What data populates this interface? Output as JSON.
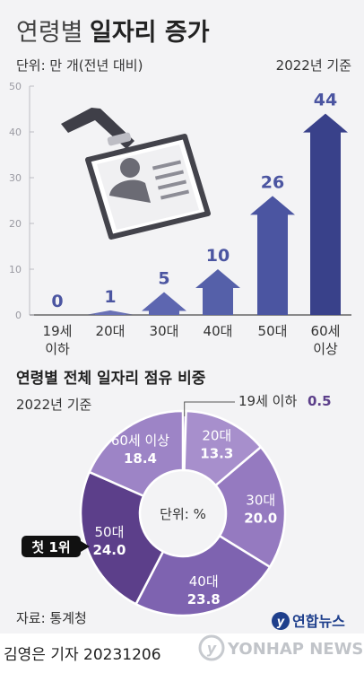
{
  "title": {
    "light": "연령별",
    "bold": "일자리 증가"
  },
  "unit_label": "단위: 만 개(전년 대비)",
  "year_label": "2022년 기준",
  "chart_data": [
    {
      "type": "bar",
      "categories": [
        "19세 이하",
        "20대",
        "30대",
        "40대",
        "50대",
        "60세 이상"
      ],
      "category_lines": [
        [
          "19세",
          "이하"
        ],
        [
          "20대"
        ],
        [
          "30대"
        ],
        [
          "40대"
        ],
        [
          "50대"
        ],
        [
          "60세",
          "이상"
        ]
      ],
      "values": [
        0,
        1,
        5,
        10,
        26,
        44
      ],
      "ylim": [
        0,
        50
      ],
      "yticks": [
        0,
        10,
        20,
        30,
        40,
        50
      ],
      "grid": false,
      "colors": [
        "#6870b5",
        "#6870b5",
        "#5d66b0",
        "#5560a9",
        "#4b55a1",
        "#39418a"
      ]
    },
    {
      "type": "pie",
      "title": "연령별 전체 일자리 점유 비중",
      "subtitle": "2022년 기준",
      "center_label": "단위: %",
      "slices": [
        {
          "label": "19세 이하",
          "value": 0.5,
          "color": "#9b82c2"
        },
        {
          "label": "20대",
          "value": 13.3,
          "color": "#a78fcc"
        },
        {
          "label": "30대",
          "value": 20.0,
          "color": "#957ac0"
        },
        {
          "label": "40대",
          "value": 23.8,
          "color": "#7e63b0"
        },
        {
          "label": "50대",
          "value": 24.0,
          "color": "#5c3f8a"
        },
        {
          "label": "60세 이상",
          "value": 18.4,
          "color": "#9d84c6"
        }
      ],
      "callout": "첫 1위"
    }
  ],
  "source": "자료: 통계청",
  "credit": "김영은 기자  20231206",
  "brand": {
    "logo_text": "연합뉴스",
    "watermark": "YONHAP NEWS"
  }
}
